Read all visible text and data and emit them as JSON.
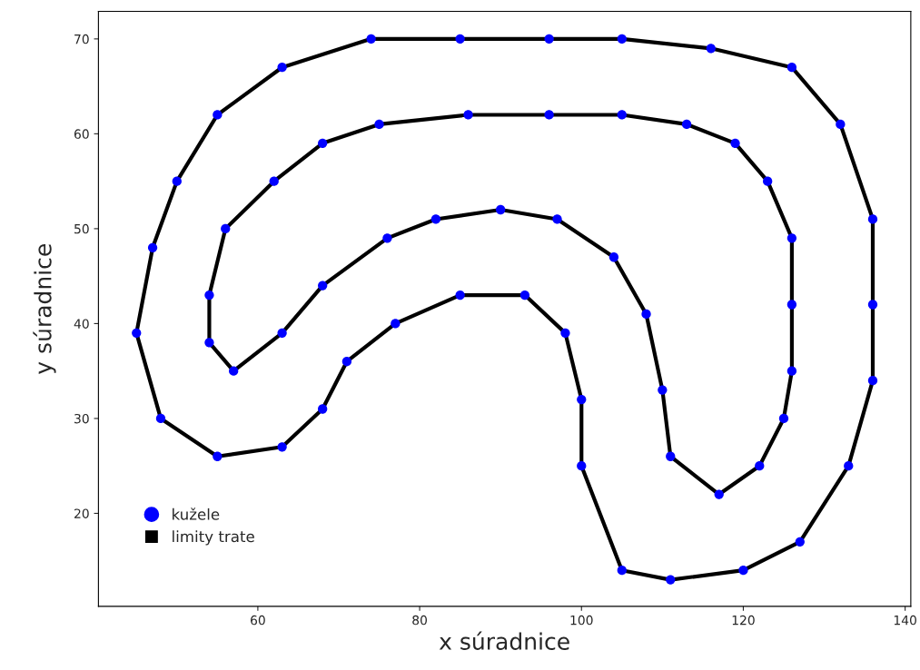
{
  "chart_data": {
    "type": "scatter",
    "xlabel": "x súradnice",
    "ylabel": "y súradnice",
    "xlim": [
      40.3,
      140.7
    ],
    "xticks": [
      60,
      80,
      100,
      120,
      140
    ],
    "ylim": [
      10.2,
      72.9
    ],
    "yticks": [
      20,
      30,
      40,
      50,
      60,
      70
    ],
    "grid": false,
    "legend": "bottom left",
    "series": [
      {
        "name": "limity trate",
        "type": "line",
        "marker": "none",
        "line_style": "solid",
        "color": "#000000",
        "x": [
          45,
          47,
          50,
          55,
          63,
          74,
          85,
          96,
          105,
          116,
          126,
          132,
          136
        ],
        "values": [
          39,
          48,
          55,
          62,
          67,
          70,
          70,
          70,
          70,
          69,
          67,
          61,
          51
        ]
      },
      {
        "type": "line",
        "marker": "none",
        "line_style": "solid",
        "color": "#000000",
        "x": [
          136,
          136,
          136
        ],
        "values": [
          51,
          42,
          34
        ]
      },
      {
        "type": "line",
        "marker": "none",
        "line_style": "solid",
        "color": "#000000",
        "x": [
          136,
          133,
          127,
          120,
          111,
          105,
          100
        ],
        "values": [
          34,
          25,
          17,
          14,
          13,
          14,
          25
        ]
      },
      {
        "type": "line",
        "marker": "none",
        "line_style": "solid",
        "color": "#000000",
        "x": [
          100,
          100
        ],
        "values": [
          25,
          32
        ]
      },
      {
        "type": "line",
        "marker": "none",
        "line_style": "solid",
        "color": "#000000",
        "x": [
          100,
          98,
          93,
          85,
          77,
          71,
          68,
          63,
          55,
          48,
          45
        ],
        "values": [
          32,
          39,
          43,
          43,
          40,
          36,
          31,
          27,
          26,
          30,
          39
        ]
      },
      {
        "type": "line",
        "marker": "none",
        "line_style": "solid",
        "color": "#000000",
        "x": [
          54,
          56,
          62,
          68,
          75,
          86,
          96,
          105,
          113,
          119,
          123,
          126
        ],
        "values": [
          43,
          50,
          55,
          59,
          61,
          62,
          62,
          62,
          61,
          59,
          55,
          49
        ]
      },
      {
        "type": "line",
        "marker": "none",
        "line_style": "solid",
        "color": "#000000",
        "x": [
          126,
          126,
          126
        ],
        "values": [
          49,
          42,
          35
        ]
      },
      {
        "type": "line",
        "marker": "none",
        "line_style": "solid",
        "color": "#000000",
        "x": [
          126,
          125,
          122,
          117,
          111,
          110,
          108,
          104,
          97,
          90,
          82,
          76,
          68,
          63,
          57,
          54
        ],
        "values": [
          35,
          30,
          25,
          22,
          26,
          33,
          41,
          47,
          51,
          52,
          51,
          49,
          44,
          39,
          35,
          38
        ]
      },
      {
        "type": "line",
        "marker": "none",
        "line_style": "solid",
        "color": "#000000",
        "x": [
          54,
          54
        ],
        "values": [
          38,
          43
        ]
      },
      {
        "name": "kužele",
        "marker": "circle",
        "color": "#0000ff",
        "x": [
          74,
          85,
          96,
          105,
          116,
          126,
          132,
          136,
          136,
          136,
          133,
          127,
          120,
          111,
          105,
          100,
          100,
          98,
          93,
          85,
          77,
          71,
          68,
          63,
          55,
          48,
          45,
          47,
          50,
          55,
          63,
          75,
          86,
          96,
          105,
          113,
          119,
          123,
          126,
          126,
          126,
          125,
          122,
          117,
          111,
          110,
          108,
          104,
          97,
          90,
          82,
          76,
          68,
          63,
          57,
          54,
          54,
          56,
          62,
          68
        ],
        "values": [
          70,
          70,
          70,
          70,
          69,
          67,
          61,
          51,
          42,
          34,
          25,
          17,
          14,
          13,
          14,
          25,
          32,
          39,
          43,
          43,
          40,
          36,
          31,
          27,
          26,
          30,
          39,
          48,
          55,
          62,
          67,
          61,
          62,
          62,
          62,
          61,
          59,
          55,
          49,
          42,
          35,
          30,
          25,
          22,
          26,
          33,
          41,
          47,
          51,
          52,
          51,
          49,
          44,
          39,
          35,
          38,
          43,
          50,
          55,
          59
        ]
      }
    ]
  }
}
